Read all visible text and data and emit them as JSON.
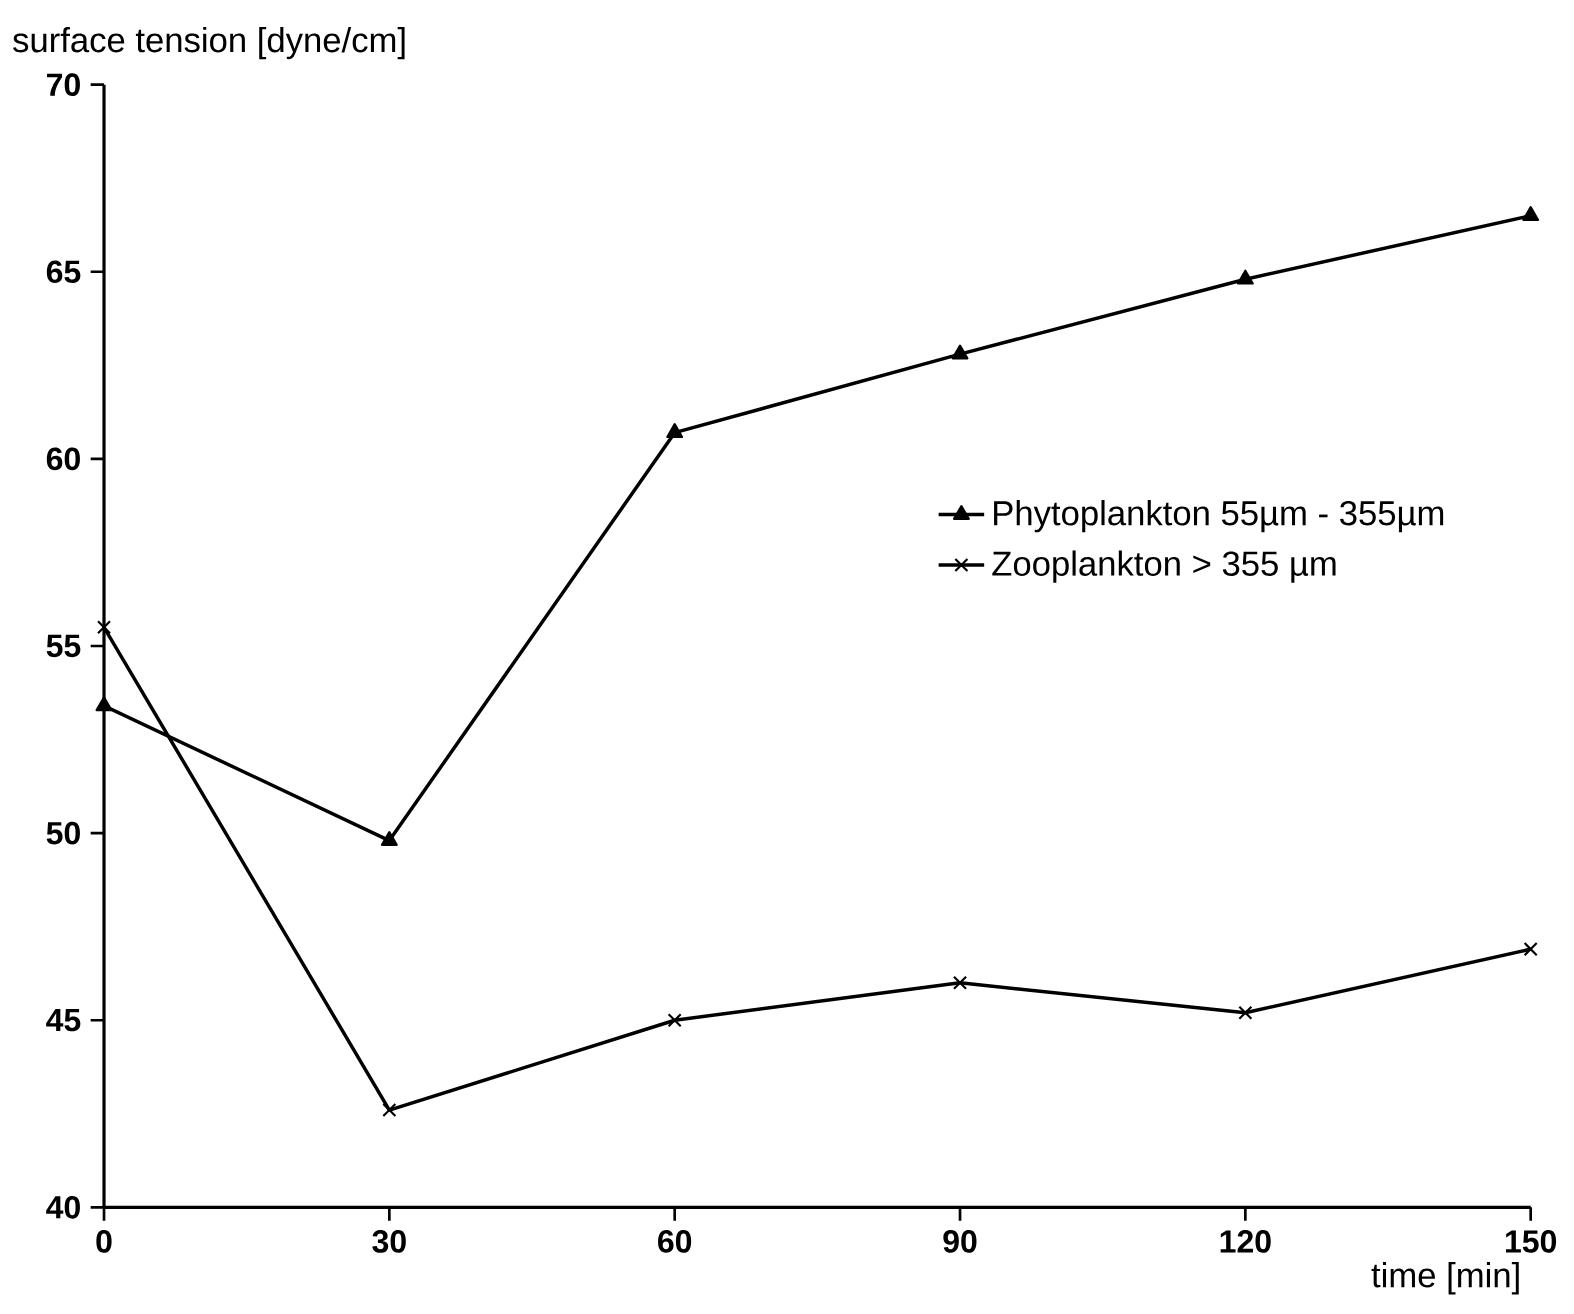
{
  "chart_data": {
    "type": "line",
    "xlabel": "time [min]",
    "ylabel": "surface tension [dyne/cm]",
    "x": [
      0,
      30,
      60,
      90,
      120,
      150
    ],
    "xlim": [
      0,
      150
    ],
    "xticks": [
      0,
      30,
      60,
      90,
      120,
      150
    ],
    "ylim": [
      40,
      70
    ],
    "yticks": [
      40,
      45,
      50,
      55,
      60,
      65,
      70
    ],
    "legend": "right",
    "series": [
      {
        "name": "Phytoplankton 55µm - 355µm",
        "color": "#000000",
        "marker": "triangle",
        "values": [
          53.4,
          49.8,
          60.7,
          62.8,
          64.8,
          66.5
        ]
      },
      {
        "name": "Zooplankton > 355 µm",
        "color": "#000000",
        "marker": "cross",
        "values": [
          55.5,
          42.6,
          45.0,
          46.0,
          45.2,
          46.9
        ]
      }
    ]
  }
}
